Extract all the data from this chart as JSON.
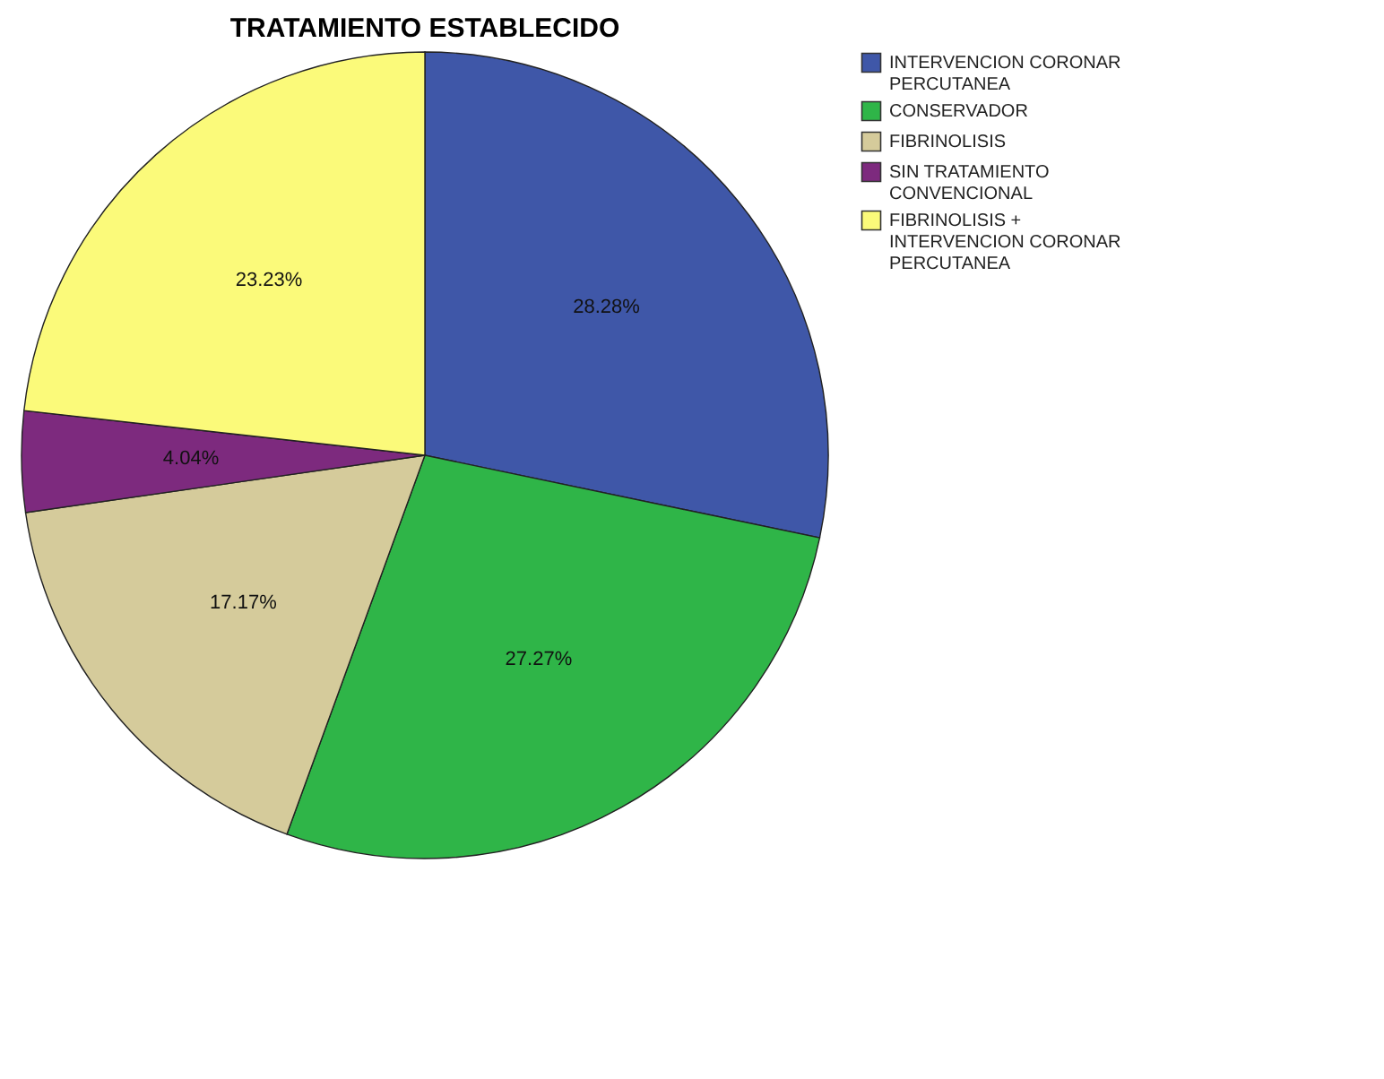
{
  "chart_data": {
    "type": "pie",
    "title": "TRATAMIENTO ESTABLECIDO",
    "categories": [
      "INTERVENCION CORONAR PERCUTANEA",
      "CONSERVADOR",
      "FIBRINOLISIS",
      "SIN TRATAMIENTO CONVENCIONAL",
      "FIBRINOLISIS + INTERVENCION CORONAR PERCUTANEA"
    ],
    "values": [
      28.28,
      27.27,
      17.17,
      4.04,
      23.23
    ],
    "value_labels": [
      "28.28%",
      "27.27%",
      "17.17%",
      "4.04%",
      "23.23%"
    ],
    "colors": [
      "#3f57a8",
      "#2fb548",
      "#d5cb9b",
      "#7d2a7e",
      "#fbfa7a"
    ],
    "legend": "top right"
  }
}
